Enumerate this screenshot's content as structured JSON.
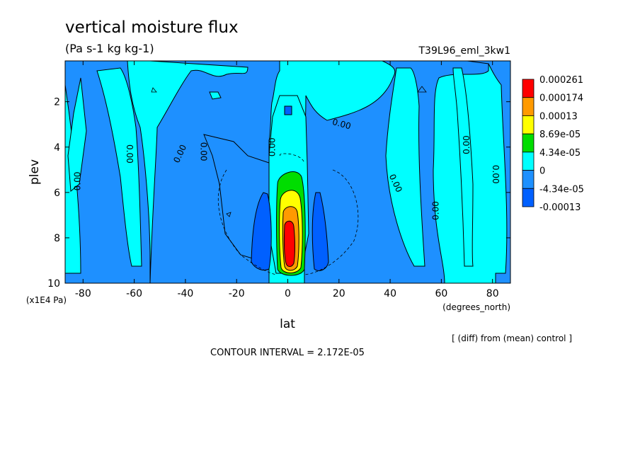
{
  "chart_data": {
    "type": "contour",
    "title": "vertical moisture flux",
    "units": "(Pa s-1 kg kg-1)",
    "run_label": "T39L96_eml_3kw1",
    "xlabel": "lat",
    "x_units": "(degrees_north)",
    "ylabel": "plev",
    "y_units": "(x1E4 Pa)",
    "xlim": [
      -87,
      87
    ],
    "ylim": [
      10,
      0.2
    ],
    "x_ticks": [
      {
        "value": -80,
        "label": "-80"
      },
      {
        "value": -60,
        "label": "-60"
      },
      {
        "value": -40,
        "label": "-40"
      },
      {
        "value": -20,
        "label": "-20"
      },
      {
        "value": 0,
        "label": "0"
      },
      {
        "value": 20,
        "label": "20"
      },
      {
        "value": 40,
        "label": "40"
      },
      {
        "value": 60,
        "label": "60"
      },
      {
        "value": 80,
        "label": "80"
      }
    ],
    "y_ticks": [
      {
        "value": 2,
        "label": "2"
      },
      {
        "value": 4,
        "label": "4"
      },
      {
        "value": 6,
        "label": "6"
      },
      {
        "value": 8,
        "label": "8"
      },
      {
        "value": 10,
        "label": "10"
      }
    ],
    "legend": [
      {
        "label": "0.000261",
        "color": "#ff0000"
      },
      {
        "label": "0.000174",
        "color": "#ff9a00"
      },
      {
        "label": "0.00013",
        "color": "#ffff00"
      },
      {
        "label": "8.69e-05",
        "color": "#00dd00"
      },
      {
        "label": "4.34e-05",
        "color": "#00ffff"
      },
      {
        "label": "0",
        "color": "#1e90ff"
      },
      {
        "label": "-4.34e-05",
        "color": "#0060ff"
      },
      {
        "label": "-0.00013",
        "color": "#0060ff"
      }
    ],
    "legend_swatch_colors": [
      "#ff0000",
      "#ff9a00",
      "#ffff00",
      "#00dd00",
      "#00ffff",
      "#1e90ff",
      "#0060ff"
    ],
    "contour_interval_label": "CONTOUR INTERVAL = 2.172E-05",
    "note": "[ (diff) from (mean) control ]",
    "contour_labels": [
      {
        "text": "0.00",
        "lat": -82,
        "plev": 5.5,
        "rot": -90
      },
      {
        "text": "0.00",
        "lat": -62,
        "plev": 4.3,
        "rot": 90
      },
      {
        "text": "0.00",
        "lat": -42,
        "plev": 4.3,
        "rot": -65
      },
      {
        "text": "0.00",
        "lat": -33,
        "plev": 4.2,
        "rot": 90
      },
      {
        "text": "0.00",
        "lat": -6,
        "plev": 4.0,
        "rot": -90
      },
      {
        "text": "0.00",
        "lat": 21,
        "plev": 3.0,
        "rot": 15
      },
      {
        "text": "0.00",
        "lat": 42,
        "plev": 5.6,
        "rot": 65
      },
      {
        "text": "0.00",
        "lat": 58,
        "plev": 6.8,
        "rot": -90
      },
      {
        "text": "0.00",
        "lat": 70,
        "plev": 3.9,
        "rot": -90
      },
      {
        "text": "0.00",
        "lat": 81,
        "plev": 5.2,
        "rot": 90
      }
    ]
  }
}
